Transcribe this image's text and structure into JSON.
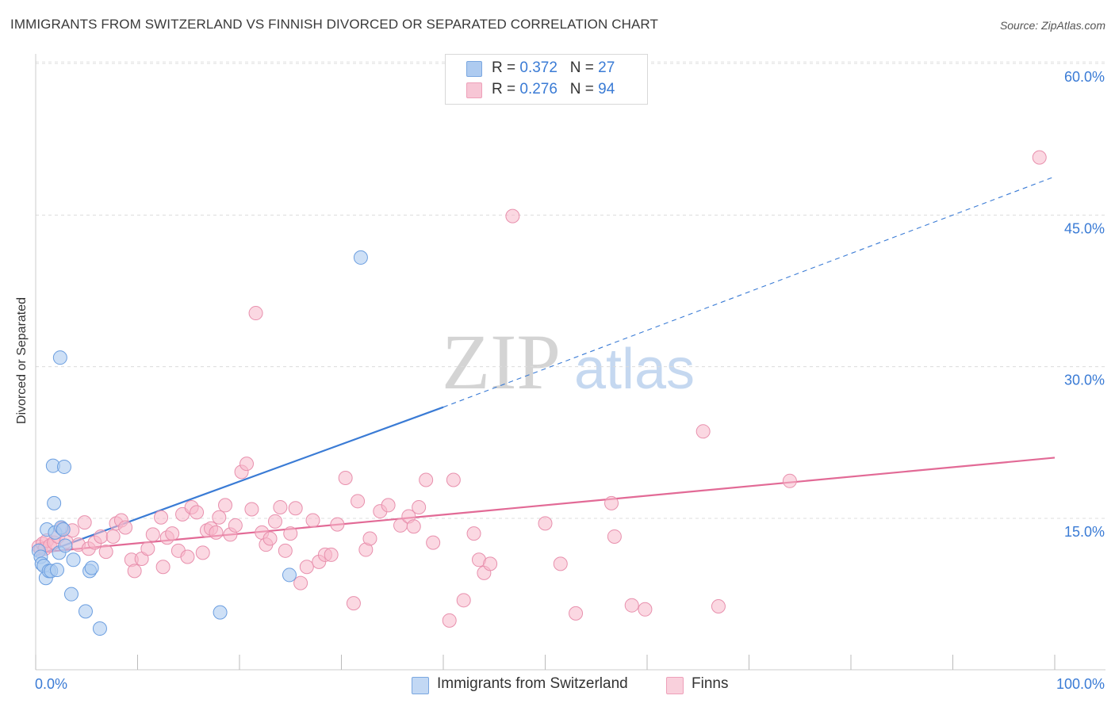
{
  "title": "IMMIGRANTS FROM SWITZERLAND VS FINNISH DIVORCED OR SEPARATED CORRELATION CHART",
  "source": "Source: ZipAtlas.com",
  "watermark": {
    "zip": "ZIP",
    "atlas": "atlas"
  },
  "legend_top": [
    {
      "r_label": "R = ",
      "r_value": "0.372",
      "n_label": "N = ",
      "n_value": "27",
      "color": "#aecbf0"
    },
    {
      "r_label": "R = ",
      "r_value": "0.276",
      "n_label": "N = ",
      "n_value": "94",
      "color": "#f7b8cb"
    }
  ],
  "legend_bottom": [
    {
      "label": "Immigrants from Switzerland",
      "color": "#aecbf0"
    },
    {
      "label": "Finns",
      "color": "#f7b8cb"
    }
  ],
  "chart_data": {
    "type": "scatter",
    "title": "IMMIGRANTS FROM SWITZERLAND VS FINNISH DIVORCED OR SEPARATED CORRELATION CHART",
    "xlabel": "",
    "ylabel": "Divorced or Separated",
    "xlim": [
      0,
      100
    ],
    "ylim": [
      0,
      62
    ],
    "x_tick_labels": [
      "0.0%",
      "100.0%"
    ],
    "y_ticks": [
      15,
      30,
      45,
      60
    ],
    "y_tick_labels": [
      "15.0%",
      "30.0%",
      "45.0%",
      "60.0%"
    ],
    "grid": true,
    "legend": "top-center",
    "series": [
      {
        "name": "Immigrants from Switzerland",
        "color": "#3a7bd5",
        "fill": "#aecbf0",
        "points": [
          [
            0.3,
            11.8
          ],
          [
            0.5,
            11.2
          ],
          [
            0.6,
            10.5
          ],
          [
            0.8,
            10.3
          ],
          [
            1.0,
            9.1
          ],
          [
            1.1,
            13.9
          ],
          [
            1.3,
            9.8
          ],
          [
            1.5,
            9.8
          ],
          [
            1.7,
            20.2
          ],
          [
            1.8,
            16.5
          ],
          [
            1.9,
            13.6
          ],
          [
            2.1,
            9.9
          ],
          [
            2.3,
            11.6
          ],
          [
            2.4,
            30.9
          ],
          [
            2.5,
            14.1
          ],
          [
            2.9,
            12.3
          ],
          [
            2.7,
            13.9
          ],
          [
            3.5,
            7.5
          ],
          [
            3.7,
            10.9
          ],
          [
            4.9,
            5.8
          ],
          [
            5.3,
            9.8
          ],
          [
            5.5,
            10.1
          ],
          [
            6.3,
            4.1
          ],
          [
            2.8,
            20.1
          ],
          [
            18.1,
            5.7
          ],
          [
            24.9,
            9.4
          ],
          [
            31.9,
            40.8
          ]
        ],
        "trend": {
          "x0": 0,
          "y0": 11.3,
          "x1": 40,
          "y1": 26.0,
          "dash_to_x": 100,
          "dash_to_y": 48.8
        }
      },
      {
        "name": "Finns",
        "color": "#e26a96",
        "fill": "#f7b8cb",
        "points": [
          [
            0.3,
            12.2
          ],
          [
            0.5,
            11.9
          ],
          [
            0.7,
            12.5
          ],
          [
            0.9,
            12.0
          ],
          [
            1.1,
            12.8
          ],
          [
            1.4,
            12.3
          ],
          [
            1.8,
            12.6
          ],
          [
            2.2,
            13.2
          ],
          [
            2.6,
            14.0
          ],
          [
            3.0,
            12.7
          ],
          [
            3.6,
            13.8
          ],
          [
            4.2,
            12.4
          ],
          [
            4.8,
            14.6
          ],
          [
            5.2,
            12.0
          ],
          [
            5.8,
            12.6
          ],
          [
            6.4,
            13.2
          ],
          [
            6.9,
            11.7
          ],
          [
            7.6,
            13.2
          ],
          [
            7.9,
            14.5
          ],
          [
            8.4,
            14.8
          ],
          [
            8.8,
            14.1
          ],
          [
            9.4,
            10.9
          ],
          [
            9.7,
            9.8
          ],
          [
            10.4,
            11.0
          ],
          [
            11.0,
            12.0
          ],
          [
            11.5,
            13.4
          ],
          [
            12.3,
            15.1
          ],
          [
            12.5,
            10.2
          ],
          [
            12.9,
            13.1
          ],
          [
            13.4,
            13.5
          ],
          [
            14.0,
            11.8
          ],
          [
            14.4,
            15.4
          ],
          [
            14.9,
            11.2
          ],
          [
            15.3,
            16.1
          ],
          [
            15.8,
            15.6
          ],
          [
            16.4,
            11.6
          ],
          [
            16.8,
            13.8
          ],
          [
            17.2,
            14.0
          ],
          [
            17.7,
            13.6
          ],
          [
            18.0,
            15.1
          ],
          [
            18.6,
            16.3
          ],
          [
            19.1,
            13.4
          ],
          [
            19.6,
            14.3
          ],
          [
            20.2,
            19.6
          ],
          [
            20.7,
            20.4
          ],
          [
            21.2,
            15.9
          ],
          [
            21.6,
            35.3
          ],
          [
            22.2,
            13.6
          ],
          [
            22.6,
            12.4
          ],
          [
            23.0,
            13.0
          ],
          [
            23.5,
            14.7
          ],
          [
            24.0,
            16.1
          ],
          [
            24.5,
            11.8
          ],
          [
            25.0,
            13.5
          ],
          [
            25.5,
            16.0
          ],
          [
            26.0,
            8.6
          ],
          [
            26.6,
            10.2
          ],
          [
            27.2,
            14.8
          ],
          [
            27.8,
            10.7
          ],
          [
            28.4,
            11.4
          ],
          [
            29.0,
            11.4
          ],
          [
            29.6,
            14.4
          ],
          [
            30.4,
            19.0
          ],
          [
            31.2,
            6.6
          ],
          [
            31.6,
            16.7
          ],
          [
            32.4,
            11.9
          ],
          [
            32.8,
            13.0
          ],
          [
            33.8,
            15.7
          ],
          [
            34.6,
            16.3
          ],
          [
            35.8,
            14.3
          ],
          [
            36.6,
            15.2
          ],
          [
            37.6,
            16.1
          ],
          [
            38.3,
            18.8
          ],
          [
            39.0,
            12.6
          ],
          [
            40.6,
            4.9
          ],
          [
            41.0,
            18.8
          ],
          [
            42.0,
            6.9
          ],
          [
            43.0,
            13.5
          ],
          [
            43.5,
            10.9
          ],
          [
            44.0,
            9.6
          ],
          [
            44.6,
            10.5
          ],
          [
            46.8,
            44.9
          ],
          [
            50.0,
            14.5
          ],
          [
            51.5,
            10.5
          ],
          [
            53.0,
            5.6
          ],
          [
            56.5,
            16.5
          ],
          [
            56.8,
            13.2
          ],
          [
            58.5,
            6.4
          ],
          [
            59.8,
            6.0
          ],
          [
            65.5,
            23.6
          ],
          [
            67.0,
            6.3
          ],
          [
            74.0,
            18.7
          ],
          [
            98.5,
            50.7
          ],
          [
            37.1,
            14.2
          ]
        ],
        "trend": {
          "x0": 0,
          "y0": 11.6,
          "x1": 100,
          "y1": 21.0
        }
      }
    ]
  }
}
